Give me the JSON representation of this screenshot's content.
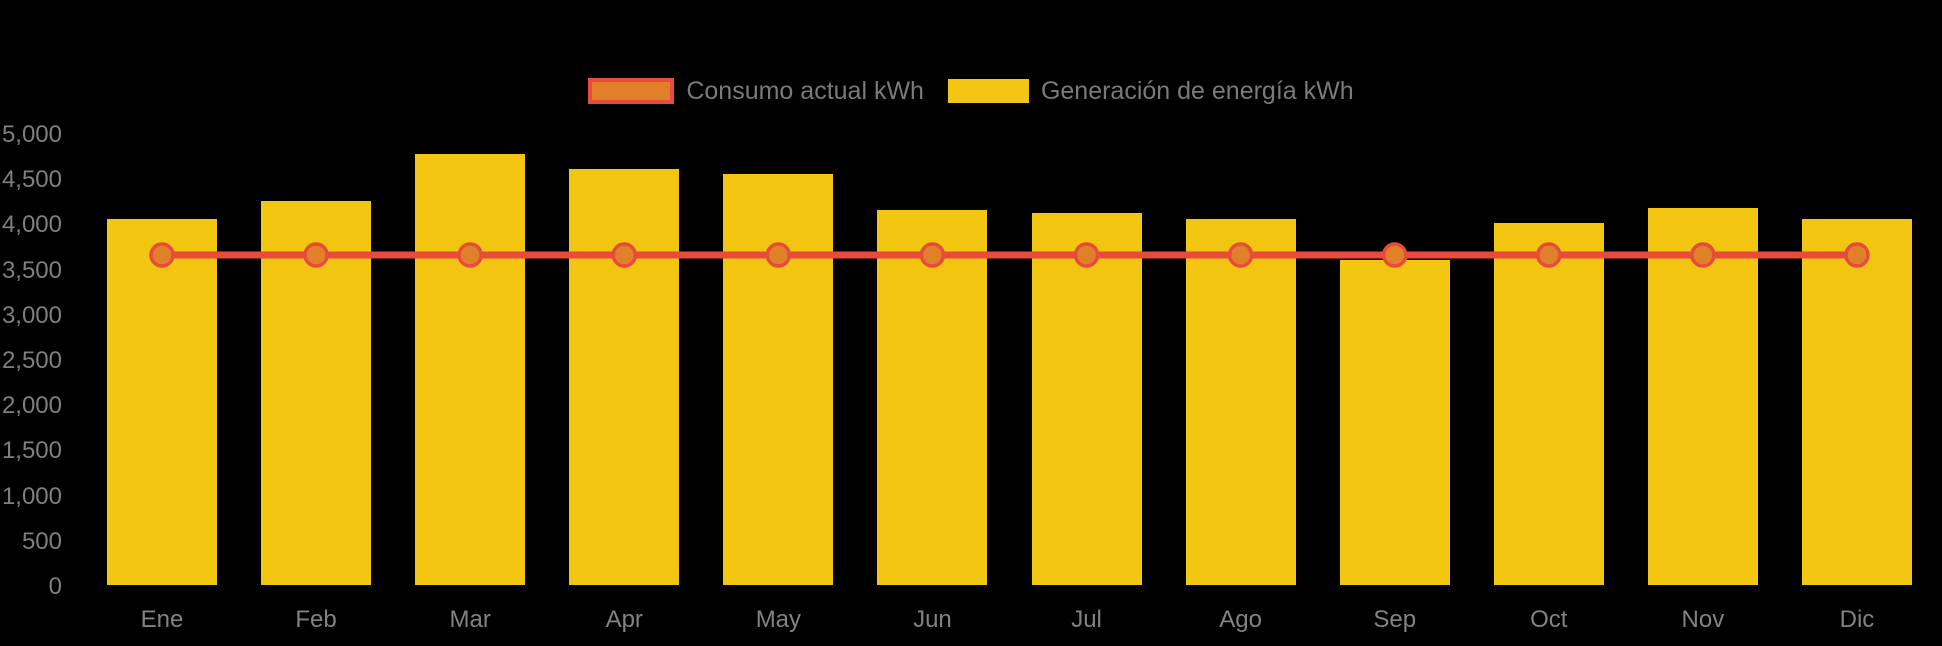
{
  "background": "#000000",
  "legend": {
    "position": "top",
    "items": [
      {
        "label": "Consumo actual kWh",
        "swatch_fill": "#E0812A",
        "swatch_border": "#E84B3C",
        "series_type": "line"
      },
      {
        "label": "Generación de energía kWh",
        "swatch_fill": "#F2C511",
        "swatch_border": null,
        "series_type": "bar"
      }
    ]
  },
  "chart_data": {
    "type": "combo",
    "categories": [
      "Ene",
      "Feb",
      "Mar",
      "Apr",
      "May",
      "Jun",
      "Jul",
      "Ago",
      "Sep",
      "Oct",
      "Nov",
      "Dic"
    ],
    "series": [
      {
        "name": "Consumo actual kWh",
        "type": "line",
        "color": "#E84B3C",
        "point_fill": "#E0812A",
        "point_stroke": "#E84B3C",
        "values": [
          3650,
          3650,
          3650,
          3650,
          3650,
          3650,
          3650,
          3650,
          3650,
          3650,
          3650,
          3650
        ]
      },
      {
        "name": "Generación de energía kWh",
        "type": "bar",
        "color": "#F2C511",
        "values": [
          4050,
          4250,
          4770,
          4600,
          4550,
          4150,
          4120,
          4050,
          3600,
          4000,
          4170,
          4050
        ]
      }
    ],
    "title": "",
    "xlabel": "",
    "ylabel": "",
    "ylim": [
      0,
      5000
    ],
    "ytick_step": 500,
    "ytick_labels": [
      "0",
      "500",
      "1,000",
      "1,500",
      "2,000",
      "2,500",
      "3,000",
      "3,500",
      "4,000",
      "4,500",
      "5,000"
    ],
    "grid": false,
    "legend_position": "top",
    "axis_text_color": "#7F7F7F"
  }
}
